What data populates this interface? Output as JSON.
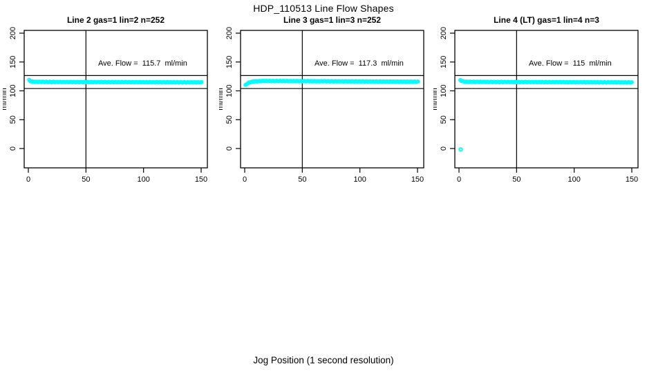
{
  "page": {
    "title": "HDP_110513  Line Flow Shapes",
    "xlabel": "Jog Position (1 second resolution)",
    "background": "#ffffff",
    "axis_color": "#000000"
  },
  "chart_data": [
    {
      "type": "scatter",
      "title": "Line 2 gas=1 lin=2 n=252",
      "annotation": "Ave. Flow =  115.7  ml/min",
      "ave_flow": 115.7,
      "n": 252,
      "ylabel": "ml/min",
      "point_color": "#00ffff",
      "xlim": [
        -3.6,
        155.4
      ],
      "ylim": [
        -33.5,
        204.8
      ],
      "xticks": [
        0,
        50,
        100,
        150
      ],
      "yticks": [
        0,
        50,
        100,
        150,
        200
      ],
      "hlines": [
        126.5,
        104
      ],
      "vline": 50,
      "band_range": [
        0.7,
        150.5
      ],
      "band_step": 0.8,
      "band_anchors": [
        [
          0.7,
          118.8
        ],
        [
          1.5,
          117.2
        ],
        [
          3,
          116.1
        ],
        [
          6,
          115.7
        ],
        [
          20,
          115.4
        ],
        [
          50,
          115.2
        ],
        [
          100,
          115.0
        ],
        [
          150.5,
          114.7
        ]
      ],
      "outliers": []
    },
    {
      "type": "scatter",
      "title": "Line 3 gas=1 lin=3 n=252",
      "annotation": "Ave. Flow =  117.3  ml/min",
      "ave_flow": 117.3,
      "n": 252,
      "ylabel": "ml/min",
      "point_color": "#00ffff",
      "xlim": [
        -3.6,
        155.4
      ],
      "ylim": [
        -33.5,
        204.8
      ],
      "xticks": [
        0,
        50,
        100,
        150
      ],
      "yticks": [
        0,
        50,
        100,
        150,
        200
      ],
      "hlines": [
        126.5,
        104
      ],
      "vline": 50,
      "band_range": [
        0.7,
        150.5
      ],
      "band_step": 0.8,
      "band_anchors": [
        [
          0.7,
          109.8
        ],
        [
          1.5,
          111.5
        ],
        [
          3,
          113.6
        ],
        [
          5,
          115.2
        ],
        [
          8,
          116.4
        ],
        [
          15,
          117.0
        ],
        [
          35,
          116.9
        ],
        [
          70,
          116.6
        ],
        [
          110,
          116.2
        ],
        [
          150.5,
          115.8
        ]
      ],
      "outliers": []
    },
    {
      "type": "scatter",
      "title": "Line 4 (LT) gas=1 lin=4 n=3",
      "annotation": "Ave. Flow =  115  ml/min",
      "ave_flow": 115,
      "n": 3,
      "ylabel": "ml/min",
      "point_color": "#00ffff",
      "xlim": [
        -3.6,
        155.4
      ],
      "ylim": [
        -33.5,
        204.8
      ],
      "xticks": [
        0,
        50,
        100,
        150
      ],
      "yticks": [
        0,
        50,
        100,
        150,
        200
      ],
      "hlines": [
        126.5,
        104
      ],
      "vline": 50,
      "band_range": [
        1.2,
        150.5
      ],
      "band_step": 0.8,
      "band_anchors": [
        [
          1.2,
          118.5
        ],
        [
          2.5,
          117.0
        ],
        [
          4,
          116.1
        ],
        [
          8,
          115.7
        ],
        [
          30,
          115.4
        ],
        [
          60,
          115.2
        ],
        [
          100,
          115.0
        ],
        [
          150.5,
          114.6
        ]
      ],
      "outliers": [
        [
          1.5,
          -1.5
        ]
      ]
    }
  ]
}
